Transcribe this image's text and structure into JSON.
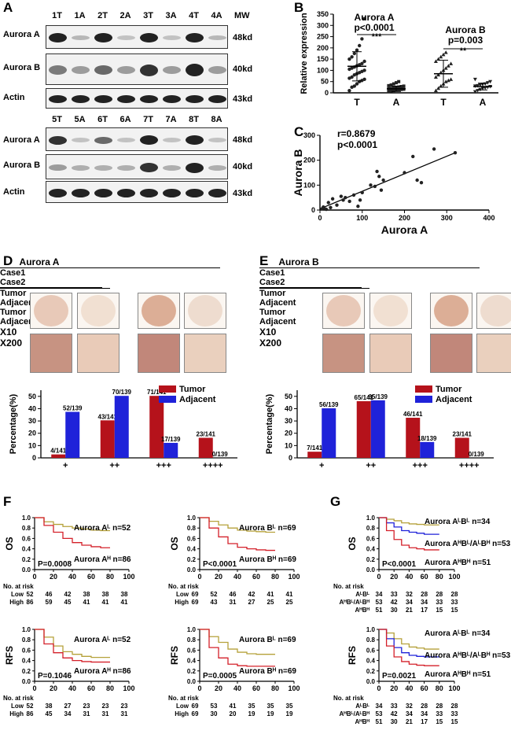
{
  "panels": {
    "A": "A",
    "B": "B",
    "C": "C",
    "D": "D",
    "E": "E",
    "F": "F",
    "G": "G"
  },
  "blot": {
    "lanes_top": [
      "1T",
      "1A",
      "2T",
      "2A",
      "3T",
      "3A",
      "4T",
      "4A"
    ],
    "lanes_bottom": [
      "5T",
      "5A",
      "6T",
      "6A",
      "7T",
      "7A",
      "8T",
      "8A"
    ],
    "mw_label": "MW",
    "rows_top": [
      {
        "name": "Aurora A",
        "kd": "48kd"
      },
      {
        "name": "Aurora B",
        "kd": "40kd"
      },
      {
        "name": "Actin",
        "kd": "43kd"
      }
    ],
    "rows_bottom": [
      {
        "name": "Aurora A",
        "kd": "48kd"
      },
      {
        "name": "Aurora B",
        "kd": "40kd"
      },
      {
        "name": "Actin",
        "kd": "43kd"
      }
    ]
  },
  "chart_data": [
    {
      "id": "B",
      "type": "scatter",
      "ylabel": "Relative expression",
      "yticks": [
        0,
        50,
        100,
        150,
        200,
        250,
        300,
        350
      ],
      "ylim": [
        0,
        350
      ],
      "groups": [
        {
          "name": "T",
          "mean": 118,
          "sd": 65,
          "values": [
            10,
            25,
            30,
            40,
            50,
            55,
            60,
            65,
            70,
            80,
            85,
            90,
            95,
            100,
            105,
            110,
            115,
            120,
            125,
            130,
            140,
            150,
            160,
            175,
            190,
            210,
            240,
            330
          ]
        },
        {
          "name": "A",
          "mean": 18,
          "sd": 12,
          "values": [
            5,
            8,
            10,
            12,
            14,
            15,
            16,
            18,
            20,
            22,
            24,
            26,
            28,
            30,
            32,
            35,
            40,
            45,
            50
          ]
        },
        {
          "name": "T",
          "mean": 85,
          "sd": 60,
          "values": [
            10,
            20,
            30,
            40,
            50,
            55,
            60,
            70,
            80,
            90,
            100,
            110,
            120,
            130,
            140,
            150,
            160,
            170,
            180
          ]
        },
        {
          "name": "A",
          "mean": 28,
          "sd": 15,
          "values": [
            5,
            10,
            15,
            20,
            22,
            25,
            28,
            30,
            32,
            35,
            38,
            40,
            45,
            50,
            60
          ]
        }
      ],
      "annotations": [
        {
          "title": "Aurora A",
          "p": "p<0.0001",
          "stars": "***"
        },
        {
          "title": "Aurora B",
          "p": "p=0.003",
          "stars": "**"
        }
      ]
    },
    {
      "id": "C",
      "type": "scatter",
      "xlabel": "Aurora A",
      "ylabel": "Aurora B",
      "xlim": [
        0,
        400
      ],
      "ylim": [
        0,
        300
      ],
      "xticks": [
        0,
        100,
        200,
        300,
        400
      ],
      "yticks": [
        0,
        100,
        200,
        300
      ],
      "r_text": "r=0.8679",
      "p_text": "p<0.0001",
      "points": [
        [
          5,
          5
        ],
        [
          8,
          12
        ],
        [
          10,
          8
        ],
        [
          15,
          3
        ],
        [
          20,
          30
        ],
        [
          25,
          10
        ],
        [
          30,
          45
        ],
        [
          40,
          20
        ],
        [
          50,
          55
        ],
        [
          55,
          40
        ],
        [
          60,
          50
        ],
        [
          70,
          35
        ],
        [
          80,
          60
        ],
        [
          90,
          15
        ],
        [
          95,
          40
        ],
        [
          100,
          70
        ],
        [
          120,
          100
        ],
        [
          130,
          95
        ],
        [
          135,
          155
        ],
        [
          140,
          135
        ],
        [
          145,
          80
        ],
        [
          150,
          120
        ],
        [
          200,
          150
        ],
        [
          220,
          215
        ],
        [
          230,
          120
        ],
        [
          240,
          110
        ],
        [
          270,
          245
        ],
        [
          320,
          230
        ]
      ],
      "fit": [
        [
          0,
          5
        ],
        [
          320,
          230
        ]
      ]
    },
    {
      "id": "D",
      "type": "bar",
      "ylabel": "Percentage(%)",
      "yticks": [
        0,
        10,
        20,
        30,
        40,
        50
      ],
      "ylim": [
        0,
        55
      ],
      "categories": [
        "+",
        "++",
        "+++",
        "++++"
      ],
      "series": [
        {
          "name": "Tumor",
          "color": "#b5121b",
          "values": [
            2.8,
            30.5,
            50.4,
            16.3
          ],
          "labels": [
            "4/141",
            "43/141",
            "71/141",
            "23/141"
          ]
        },
        {
          "name": "Adjacent",
          "color": "#1f22d9",
          "values": [
            37.4,
            50.4,
            12.2,
            0
          ],
          "labels": [
            "52/139",
            "70/139",
            "17/139",
            "0/139"
          ]
        }
      ]
    },
    {
      "id": "E",
      "type": "bar",
      "ylabel": "Percentage(%)",
      "yticks": [
        0,
        10,
        20,
        30,
        40,
        50
      ],
      "ylim": [
        0,
        55
      ],
      "categories": [
        "+",
        "++",
        "+++",
        "++++"
      ],
      "series": [
        {
          "name": "Tumor",
          "color": "#b5121b",
          "values": [
            5,
            46.1,
            32.6,
            16.3
          ],
          "labels": [
            "7/141",
            "65/141",
            "46/141",
            "23/141"
          ]
        },
        {
          "name": "Adjacent",
          "color": "#1f22d9",
          "values": [
            40.3,
            46.8,
            12.9,
            0
          ],
          "labels": [
            "56/139",
            "65/139",
            "18/139",
            "0/139"
          ]
        }
      ]
    }
  ],
  "ihc": [
    {
      "title": "Aurora A",
      "case1": "Case1",
      "case2": "Case2",
      "cols": [
        "Tumor",
        "Adjacent",
        "Tumor",
        "Adjacent"
      ],
      "rows": [
        "X10",
        "X200"
      ]
    },
    {
      "title": "Aurora B",
      "case1": "Case1",
      "case2": "Case2",
      "cols": [
        "Tumor",
        "Adjacent",
        "Tumor",
        "Adjacent"
      ],
      "rows": [
        "X10",
        "X200"
      ]
    }
  ],
  "km": [
    {
      "id": "F1",
      "ylabel": "OS",
      "p": "P=0.0008",
      "lines": [
        {
          "label": "Aurora Aᴸ n=52",
          "color": "#b5a13a"
        },
        {
          "label": "Aurora Aᴴ n=86",
          "color": "#d4202a"
        }
      ],
      "risk_title": "No. at risk",
      "risk": [
        {
          "name": "Low",
          "vals": [
            "52",
            "46",
            "42",
            "38",
            "38",
            "38"
          ]
        },
        {
          "name": "High",
          "vals": [
            "86",
            "59",
            "45",
            "41",
            "41",
            "41"
          ]
        }
      ]
    },
    {
      "id": "F2",
      "ylabel": "OS",
      "p": "P<0.0001",
      "lines": [
        {
          "label": "Aurora Bᴸ n=69",
          "color": "#b5a13a"
        },
        {
          "label": "Aurora Bᴴ n=69",
          "color": "#d4202a"
        }
      ],
      "risk_title": "No. at risk",
      "risk": [
        {
          "name": "Low",
          "vals": [
            "69",
            "52",
            "46",
            "42",
            "41",
            "41"
          ]
        },
        {
          "name": "High",
          "vals": [
            "69",
            "43",
            "31",
            "27",
            "25",
            "25"
          ]
        }
      ]
    },
    {
      "id": "F3",
      "ylabel": "RFS",
      "p": "P=0.1046",
      "lines": [
        {
          "label": "Aurora Aᴸ n=52",
          "color": "#b5a13a"
        },
        {
          "label": "Aurora Aᴴ n=86",
          "color": "#d4202a"
        }
      ],
      "risk_title": "No. at risk",
      "risk": [
        {
          "name": "Low",
          "vals": [
            "52",
            "38",
            "27",
            "23",
            "23",
            "23"
          ]
        },
        {
          "name": "High",
          "vals": [
            "86",
            "45",
            "34",
            "31",
            "31",
            "31"
          ]
        }
      ]
    },
    {
      "id": "F4",
      "ylabel": "RFS",
      "p": "P=0.0005",
      "lines": [
        {
          "label": "Aurora Bᴸ n=69",
          "color": "#b5a13a"
        },
        {
          "label": "Aurora Bᴴ n=69",
          "color": "#d4202a"
        }
      ],
      "risk_title": "No. at risk",
      "risk": [
        {
          "name": "Low",
          "vals": [
            "69",
            "53",
            "41",
            "35",
            "35",
            "35"
          ]
        },
        {
          "name": "High",
          "vals": [
            "69",
            "30",
            "20",
            "19",
            "19",
            "19"
          ]
        }
      ]
    },
    {
      "id": "G1",
      "ylabel": "OS",
      "p": "P<0.0001",
      "lines": [
        {
          "label": "Aurora AᴸBᴸ n=34",
          "color": "#b5a13a"
        },
        {
          "label": "Aurora AᴴBᴸ/AᴸBᴴ n=53",
          "color": "#1f22d9"
        },
        {
          "label": "Aurora AᴴBᴴ n=51",
          "color": "#d4202a"
        }
      ],
      "risk_title": "No. at risk",
      "risk": [
        {
          "name": "AᴸBᴸ",
          "vals": [
            "34",
            "33",
            "32",
            "28",
            "28",
            "28"
          ]
        },
        {
          "name": "AᴴBᴸ/AᴸBᴴ",
          "vals": [
            "53",
            "42",
            "34",
            "34",
            "33",
            "33"
          ]
        },
        {
          "name": "AᴴBᴴ",
          "vals": [
            "51",
            "30",
            "21",
            "17",
            "15",
            "15"
          ]
        }
      ]
    },
    {
      "id": "G2",
      "ylabel": "RFS",
      "p": "P=0.0021",
      "lines": [
        {
          "label": "Aurora AᴸBᴸ n=34",
          "color": "#b5a13a"
        },
        {
          "label": "Aurora AᴴBᴸ/AᴸBᴴ n=53",
          "color": "#1f22d9"
        },
        {
          "label": "Aurora AᴴBᴴ n=51",
          "color": "#d4202a"
        }
      ],
      "risk_title": "No. at risk",
      "risk": [
        {
          "name": "AᴸBᴸ",
          "vals": [
            "34",
            "33",
            "32",
            "28",
            "28",
            "28"
          ]
        },
        {
          "name": "AᴴBᴸ/AᴸBᴴ",
          "vals": [
            "53",
            "42",
            "34",
            "34",
            "33",
            "33"
          ]
        },
        {
          "name": "AᴴBᴴ",
          "vals": [
            "51",
            "30",
            "21",
            "17",
            "15",
            "15"
          ]
        }
      ]
    }
  ],
  "km_axis": {
    "yticks": [
      "0.0",
      "0.2",
      "0.4",
      "0.6",
      "0.8",
      "1.0"
    ],
    "xticks": [
      "0",
      "20",
      "40",
      "60",
      "80",
      "100"
    ]
  }
}
